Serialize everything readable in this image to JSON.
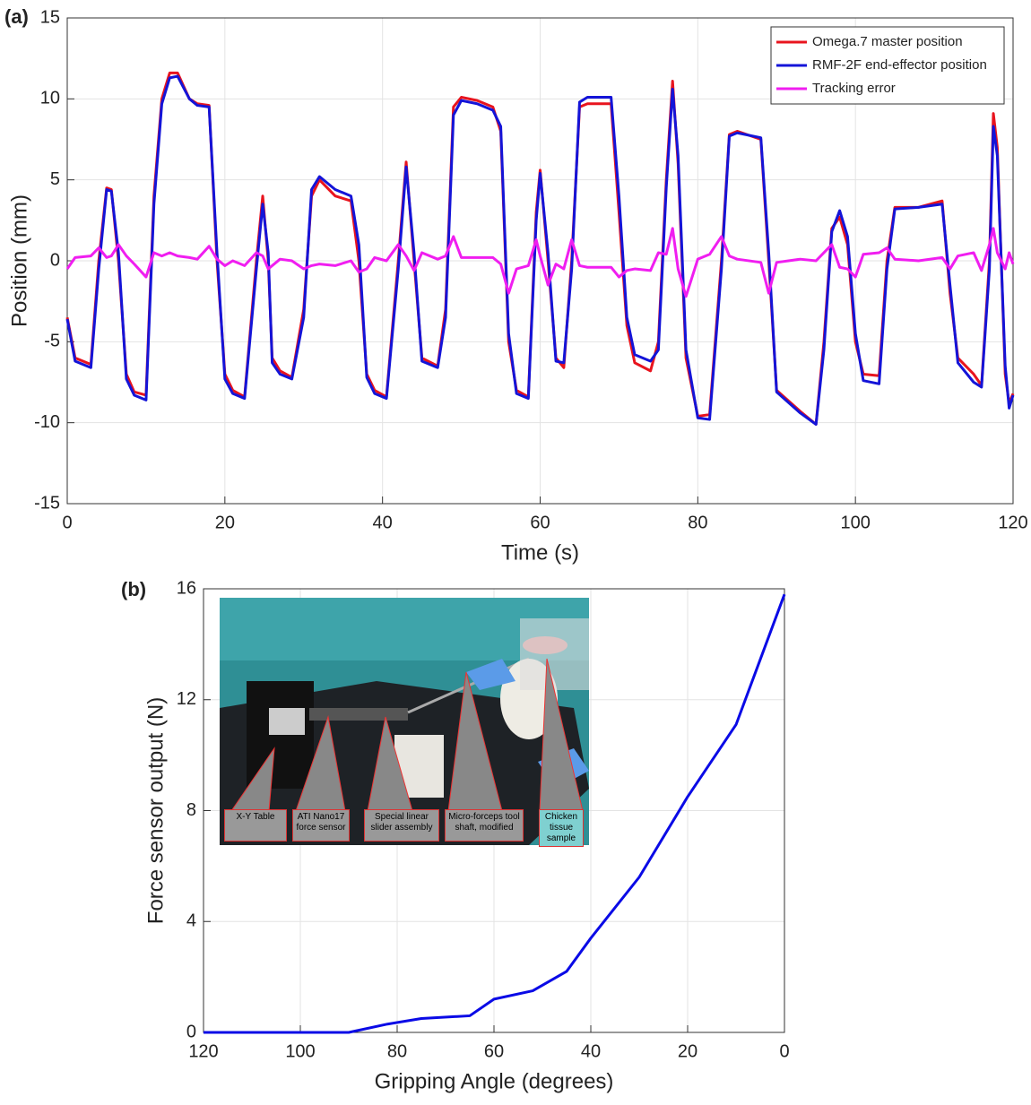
{
  "chart_data": [
    {
      "type": "line",
      "panel_label": "(a)",
      "x_label": "Time (s)",
      "y_label": "Position (mm)",
      "x": [
        0,
        1,
        3,
        4,
        5,
        5.6,
        6.5,
        7.5,
        8.5,
        10,
        11,
        12,
        13,
        14,
        15.5,
        16.5,
        18,
        19,
        20,
        21,
        22.5,
        24,
        24.8,
        25.5,
        26,
        27,
        28.5,
        30,
        31,
        32,
        34,
        36,
        37,
        38,
        39,
        40.5,
        42,
        43,
        44,
        45,
        47,
        48,
        49,
        50,
        52,
        54,
        55,
        56,
        57,
        58.5,
        59.5,
        60,
        61,
        62,
        63,
        64,
        65,
        66,
        69,
        70,
        71,
        72,
        74,
        75,
        76,
        76.8,
        77.5,
        78.5,
        80,
        81.5,
        83,
        84,
        85,
        88,
        89,
        90,
        93,
        95,
        96,
        97,
        98,
        99,
        100,
        101,
        103,
        104,
        105,
        108,
        111,
        112,
        113,
        115,
        116,
        117,
        117.5,
        118,
        119,
        119.5,
        120
      ],
      "series": [
        {
          "name": "Omega.7 master position",
          "color": "#e8141e",
          "values": [
            -3.5,
            -6.0,
            -6.4,
            0,
            4.5,
            4.4,
            0,
            -7,
            -8.1,
            -8.3,
            4,
            10,
            11.6,
            11.6,
            10,
            9.7,
            9.6,
            0,
            -7,
            -8,
            -8.4,
            0,
            4,
            0,
            -6,
            -6.8,
            -7.2,
            -3,
            4,
            5.0,
            4.0,
            3.7,
            0,
            -7,
            -8,
            -8.4,
            0,
            6.1,
            0,
            -6,
            -6.5,
            -3,
            9.5,
            10.1,
            9.9,
            9.5,
            8,
            -5,
            -8,
            -8.4,
            3,
            5.6,
            0,
            -6,
            -6.6,
            0,
            9.5,
            9.7,
            9.7,
            3,
            -4,
            -6.3,
            -6.8,
            -5,
            5,
            11.1,
            6,
            -6,
            -9.6,
            -9.5,
            0,
            7.8,
            8,
            7.5,
            0,
            -8,
            -9.3,
            -10.1,
            -5,
            2,
            2.7,
            1,
            -5,
            -7,
            -7.1,
            0,
            3.3,
            3.3,
            3.7,
            -2,
            -6,
            -7,
            -7.7,
            0,
            9.1,
            7,
            -7,
            -8.8,
            -8.2
          ]
        },
        {
          "name": "RMF-2F end-effector position",
          "color": "#1414d8",
          "values": [
            -3.6,
            -6.2,
            -6.6,
            -0.5,
            4.4,
            4.3,
            0.5,
            -7.3,
            -8.3,
            -8.6,
            3.5,
            9.7,
            11.3,
            11.4,
            10,
            9.6,
            9.5,
            0.5,
            -7.3,
            -8.2,
            -8.5,
            -0.5,
            3.5,
            0.5,
            -6.3,
            -7.0,
            -7.3,
            -3.5,
            4.4,
            5.2,
            4.4,
            4.0,
            1,
            -7.2,
            -8.2,
            -8.5,
            -0.5,
            5.8,
            0.5,
            -6.2,
            -6.6,
            -3.5,
            9,
            9.9,
            9.7,
            9.3,
            8.3,
            -4.5,
            -8.2,
            -8.5,
            2.5,
            5.4,
            0.5,
            -6.2,
            -6.3,
            -0.5,
            9.8,
            10.1,
            10.1,
            4,
            -3.5,
            -5.8,
            -6.2,
            -5.5,
            4.5,
            10.6,
            6.5,
            -5.5,
            -9.7,
            -9.8,
            -0.5,
            7.7,
            7.9,
            7.6,
            0.5,
            -8.1,
            -9.4,
            -10.1,
            -5.5,
            1.8,
            3.1,
            1.5,
            -4.5,
            -7.4,
            -7.6,
            -0.5,
            3.2,
            3.3,
            3.5,
            -1.5,
            -6.3,
            -7.5,
            -7.8,
            -0.5,
            8.3,
            6.5,
            -6.5,
            -9.1,
            -8.3
          ]
        },
        {
          "name": "Tracking error",
          "color": "#f01ef0",
          "values": [
            -0.5,
            0.2,
            0.3,
            0.8,
            0.2,
            0.3,
            1.0,
            0.3,
            -0.2,
            -1.0,
            0.5,
            0.3,
            0.5,
            0.3,
            0.2,
            0.1,
            0.9,
            0.1,
            -0.3,
            0,
            -0.3,
            0.5,
            0.3,
            -0.5,
            -0.3,
            0.1,
            0,
            -0.5,
            -0.3,
            -0.2,
            -0.3,
            0,
            -0.7,
            -0.5,
            0.2,
            0,
            1.0,
            0.3,
            -0.6,
            0.5,
            0.1,
            0.3,
            1.5,
            0.2,
            0.2,
            0.2,
            -0.2,
            -2.0,
            -0.5,
            -0.3,
            1.3,
            0.3,
            -1.5,
            -0.2,
            -0.5,
            1.3,
            -0.3,
            -0.4,
            -0.4,
            -1.0,
            -0.6,
            -0.5,
            -0.6,
            0.5,
            0.4,
            2.0,
            -0.5,
            -2.2,
            0.1,
            0.4,
            1.5,
            0.3,
            0.1,
            -0.1,
            -2.0,
            -0.1,
            0.1,
            0,
            0.5,
            1.0,
            -0.4,
            -0.5,
            -1.0,
            0.4,
            0.5,
            0.8,
            0.1,
            0,
            0.2,
            -0.5,
            0.3,
            0.5,
            -0.6,
            1.0,
            2.0,
            0.5,
            -0.5,
            0.5,
            -0.2
          ]
        }
      ],
      "xlim": [
        0,
        120
      ],
      "xticks": [
        0,
        20,
        40,
        60,
        80,
        100,
        120
      ],
      "ylim": [
        -15,
        15
      ],
      "yticks": [
        -15,
        -10,
        -5,
        0,
        5,
        10,
        15
      ],
      "grid": true,
      "legend": "upper right"
    },
    {
      "type": "line",
      "panel_label": "(b)",
      "x_label": "Gripping Angle (degrees)",
      "y_label": "Force sensor output (N)",
      "x": [
        120,
        90,
        82,
        75,
        65,
        60,
        52,
        45,
        40,
        30,
        20,
        10,
        0
      ],
      "values": [
        0,
        0,
        0.3,
        0.5,
        0.6,
        1.2,
        1.5,
        2.2,
        3.4,
        5.6,
        8.5,
        11.1,
        15.8
      ],
      "color": "#0a0ae6",
      "xlim": [
        120,
        0
      ],
      "xticks": [
        120,
        100,
        80,
        60,
        40,
        20,
        0
      ],
      "ylim": [
        0,
        16
      ],
      "yticks": [
        0,
        4,
        8,
        12,
        16
      ],
      "grid": true,
      "annotations": [
        "X-Y Table",
        "ATI Nano17 force sensor",
        "Special linear slider assembly",
        "Micro-forceps tool shaft, modified",
        "Chicken tissue sample"
      ]
    }
  ]
}
